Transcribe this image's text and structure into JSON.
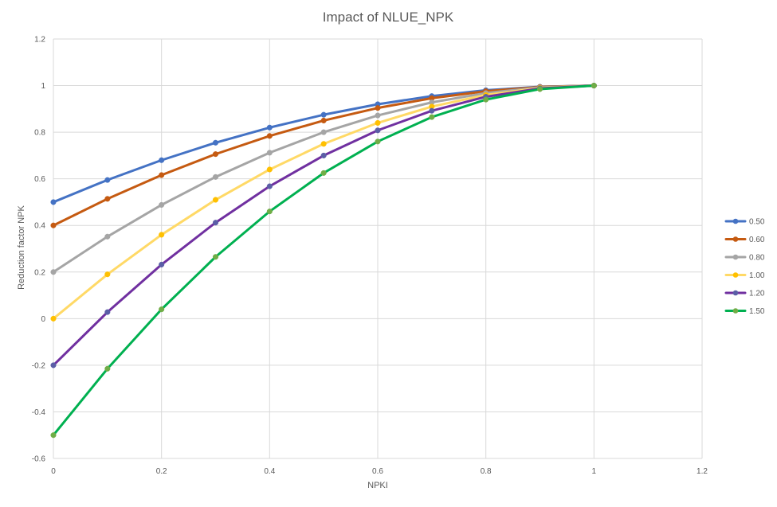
{
  "chart_data": {
    "type": "line",
    "title": "Impact of NLUE_NPK",
    "xlabel": "NPKI",
    "ylabel": "Reduction factor NPK",
    "xlim": [
      0,
      1.2
    ],
    "ylim": [
      -0.6,
      1.2
    ],
    "x_ticks": [
      "0",
      "0.2",
      "0.4",
      "0.6",
      "0.8",
      "1",
      "1.2"
    ],
    "y_ticks": [
      "-0.6",
      "-0.4",
      "-0.2",
      "0",
      "0.2",
      "0.4",
      "0.6",
      "0.8",
      "1",
      "1.2"
    ],
    "x_tick_values": [
      0,
      0.2,
      0.4,
      0.6,
      0.8,
      1.0,
      1.2
    ],
    "y_tick_values": [
      -0.6,
      -0.4,
      -0.2,
      0,
      0.2,
      0.4,
      0.6,
      0.8,
      1.0,
      1.2
    ],
    "grid": true,
    "legend_position": "right",
    "x": [
      0,
      0.1,
      0.2,
      0.3,
      0.4,
      0.5,
      0.6,
      0.7,
      0.8,
      0.9,
      1.0
    ],
    "series": [
      {
        "name": "0.50",
        "color": "#4472c4",
        "values": [
          0.5,
          0.595,
          0.68,
          0.755,
          0.82,
          0.875,
          0.92,
          0.955,
          0.98,
          0.995,
          1.0
        ]
      },
      {
        "name": "0.60",
        "color": "#c55a11",
        "values": [
          0.4,
          0.514,
          0.616,
          0.706,
          0.784,
          0.85,
          0.904,
          0.946,
          0.976,
          0.994,
          1.0
        ]
      },
      {
        "name": "0.80",
        "color": "#a5a5a5",
        "values": [
          0.2,
          0.352,
          0.488,
          0.608,
          0.712,
          0.8,
          0.872,
          0.928,
          0.968,
          0.992,
          1.0
        ]
      },
      {
        "name": "1.00",
        "color": "#ffc000",
        "lineColor": "#ffd966",
        "values": [
          0.0,
          0.19,
          0.36,
          0.51,
          0.64,
          0.75,
          0.84,
          0.91,
          0.96,
          0.99,
          1.0
        ]
      },
      {
        "name": "1.20",
        "color": "#7030a0",
        "markerColor": "#5b5ea6",
        "values": [
          -0.2,
          0.028,
          0.232,
          0.412,
          0.568,
          0.7,
          0.808,
          0.892,
          0.952,
          0.988,
          1.0
        ]
      },
      {
        "name": "1.50",
        "color": "#00b050",
        "markerColor": "#70ad47",
        "values": [
          -0.5,
          -0.215,
          0.04,
          0.265,
          0.46,
          0.625,
          0.76,
          0.865,
          0.94,
          0.985,
          1.0
        ]
      }
    ]
  }
}
